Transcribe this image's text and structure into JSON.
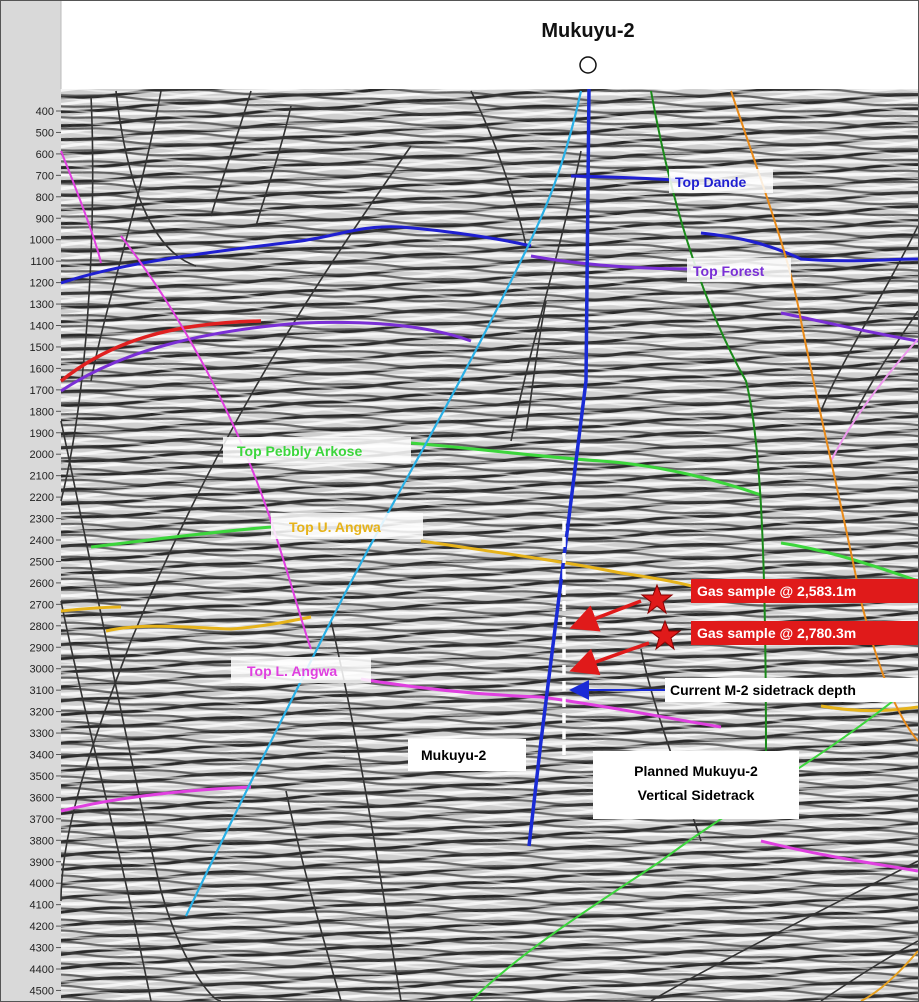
{
  "title": "Mukuyu-2",
  "depth_axis": {
    "ticks": [
      "400",
      "500",
      "600",
      "700",
      "800",
      "900",
      "1000",
      "1100",
      "1200",
      "1300",
      "1400",
      "1500",
      "1600",
      "1700",
      "1800",
      "1900",
      "2000",
      "2100",
      "2200",
      "2300",
      "2400",
      "2500",
      "2600",
      "2700",
      "2800",
      "2900",
      "3000",
      "3100",
      "3200",
      "3300",
      "3400",
      "3500",
      "3600",
      "3700",
      "3800",
      "3900",
      "4000",
      "4100",
      "4200",
      "4300",
      "4400",
      "4500"
    ]
  },
  "horizons": {
    "top_dande": "Top Dande",
    "top_forest": "Top Forest",
    "top_pebbly_arkose": "Top Pebbly Arkose",
    "top_u_angwa": "Top U. Angwa",
    "top_l_angwa": "Top L. Angwa"
  },
  "annotations": {
    "gas_sample_1": "Gas sample @ 2,583.1m",
    "gas_sample_2": "Gas sample @ 2,780.3m",
    "sidetrack_depth": "Current M-2 sidetrack depth",
    "well_label": "Mukuyu-2",
    "planned_line1": "Planned Mukuyu-2",
    "planned_line2": "Vertical Sidetrack"
  },
  "colors": {
    "top_dande": "#1f1fd1",
    "top_forest": "#7a2fd6",
    "top_pebbly_arkose": "#3cd63c",
    "top_u_angwa": "#e6b31a",
    "top_l_angwa": "#e040e0",
    "well": "#1a2bd6",
    "gas": "#e01a1a"
  }
}
